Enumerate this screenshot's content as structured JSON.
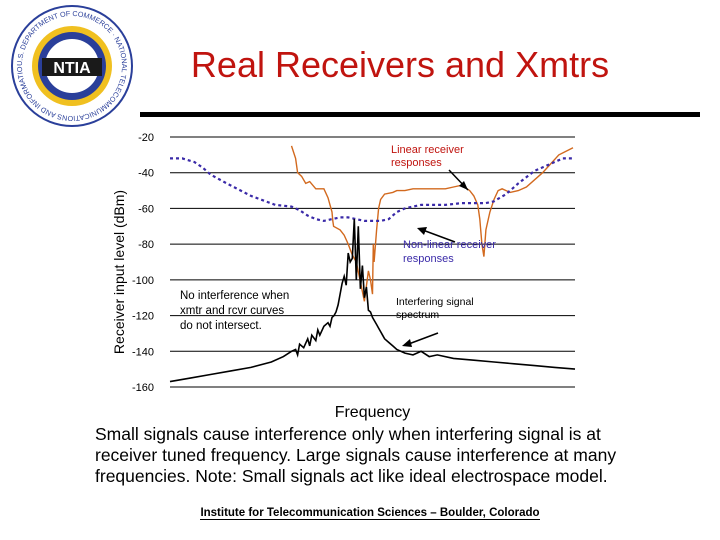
{
  "logo": {
    "text": "NTIA",
    "ring_text": "U.S. DEPARTMENT OF COMMERCE · NATIONAL TELECOMMUNICATIONS AND INFORMATION ADMINISTRATION ·",
    "colors": {
      "ring_blue": "#2a3f9a",
      "ring_gold": "#f0c020"
    }
  },
  "slide": {
    "title": "Real Receivers and Xmtrs",
    "caption": "Small signals cause interference only when interfering signal is at receiver tuned frequency.  Large signals cause interference at many frequencies.  Note: Small signals act like ideal electrospace model.",
    "footer": "Institute for Telecommunication Sciences – Boulder, Colorado"
  },
  "chart_data": {
    "type": "line",
    "xlabel": "Frequency",
    "ylabel": "Receiver input level (dBm)",
    "xlim": [
      0,
      1
    ],
    "ylim": [
      -160,
      -20
    ],
    "y_ticks": [
      -20,
      -40,
      -60,
      -80,
      -100,
      -120,
      -140,
      -160
    ],
    "y_tick_labels": [
      "-20",
      "-40",
      "-60",
      "-80",
      "-100",
      "-120",
      "-140",
      "-160"
    ],
    "grid": "horizontal",
    "colors": {
      "linear": "#d2691e",
      "nonlinear": "#3a2aa8",
      "spectrum": "#000000",
      "annotation_red": "#c0140f"
    },
    "series": [
      {
        "key": "linear",
        "x": [
          0.3,
          0.31,
          0.315,
          0.325,
          0.335,
          0.345,
          0.36,
          0.38,
          0.39,
          0.395,
          0.4,
          0.402,
          0.404,
          0.42,
          0.43,
          0.44,
          0.45,
          0.46,
          0.48,
          0.49,
          0.495,
          0.5,
          0.502,
          0.504,
          0.51,
          0.515,
          0.52,
          0.53,
          0.55,
          0.56,
          0.58,
          0.6,
          0.62,
          0.65,
          0.68,
          0.7,
          0.72,
          0.74,
          0.75,
          0.76,
          0.765,
          0.77,
          0.775,
          0.78,
          0.79,
          0.8,
          0.81,
          0.82,
          0.83,
          0.84,
          0.86,
          0.88,
          0.92,
          0.96,
          0.995
        ],
        "y": [
          -25,
          -32,
          -40,
          -42,
          -46,
          -45,
          -49,
          -49,
          -54,
          -58,
          -62,
          -67,
          -70,
          -72,
          -75,
          -80,
          -86,
          -90,
          -112,
          -95,
          -100,
          -108,
          -80,
          -90,
          -72,
          -60,
          -55,
          -52,
          -51,
          -50,
          -50,
          -49,
          -49,
          -49,
          -49,
          -48,
          -47,
          -50,
          -53,
          -58,
          -66,
          -80,
          -87,
          -72,
          -62,
          -55,
          -50,
          -49,
          -50,
          -51,
          -50,
          -48,
          -40,
          -30,
          -26
        ]
      },
      {
        "key": "nonlinear",
        "x": [
          0.0,
          0.03,
          0.06,
          0.08,
          0.1,
          0.14,
          0.2,
          0.26,
          0.3,
          0.32,
          0.34,
          0.36,
          0.38,
          0.4,
          0.42,
          0.44,
          0.46,
          0.48,
          0.5,
          0.52,
          0.54,
          0.56,
          0.58,
          0.6,
          0.62,
          0.64,
          0.68,
          0.72,
          0.76,
          0.78,
          0.8,
          0.83,
          0.86,
          0.9,
          0.94,
          0.97,
          0.995
        ],
        "y": [
          -32,
          -32,
          -34,
          -37,
          -41,
          -46,
          -53,
          -58,
          -59,
          -61,
          -64,
          -66,
          -67,
          -66,
          -65,
          -65,
          -66,
          -67,
          -67,
          -67,
          -66,
          -62,
          -60,
          -59,
          -58,
          -58,
          -58,
          -57,
          -57,
          -57,
          -56,
          -52,
          -46,
          -39,
          -35,
          -32,
          -32
        ]
      },
      {
        "key": "spectrum",
        "x": [
          0.0,
          0.05,
          0.1,
          0.15,
          0.2,
          0.25,
          0.28,
          0.3,
          0.31,
          0.315,
          0.32,
          0.33,
          0.34,
          0.345,
          0.35,
          0.36,
          0.365,
          0.37,
          0.38,
          0.39,
          0.395,
          0.4,
          0.405,
          0.41,
          0.415,
          0.42,
          0.425,
          0.43,
          0.435,
          0.44,
          0.445,
          0.45,
          0.455,
          0.46,
          0.465,
          0.47,
          0.475,
          0.48,
          0.485,
          0.49,
          0.495,
          0.5,
          0.505,
          0.51,
          0.515,
          0.52,
          0.525,
          0.53,
          0.54,
          0.55,
          0.56,
          0.58,
          0.6,
          0.62,
          0.64,
          0.66,
          0.7,
          0.75,
          0.8,
          0.85,
          0.9,
          0.95,
          1.0
        ],
        "y": [
          -157,
          -155,
          -153,
          -151,
          -149,
          -146,
          -143,
          -140,
          -139,
          -142,
          -136,
          -138,
          -133,
          -137,
          -131,
          -134,
          -128,
          -131,
          -126,
          -124,
          -126,
          -121,
          -120,
          -118,
          -114,
          -108,
          -102,
          -98,
          -103,
          -85,
          -90,
          -88,
          -66,
          -100,
          -70,
          -105,
          -92,
          -110,
          -104,
          -117,
          -118,
          -121,
          -123,
          -125,
          -127,
          -129,
          -131,
          -133,
          -135,
          -137,
          -139,
          -141,
          -142,
          -140,
          -143,
          -142,
          -144,
          -145,
          -146,
          -147,
          -148,
          -149,
          -150
        ]
      }
    ],
    "annotations": [
      {
        "text_lines": [
          "Linear receiver",
          "responses"
        ],
        "color": "red"
      },
      {
        "text_lines": [
          "Non-linear receiver",
          "responses"
        ],
        "color": "blue"
      },
      {
        "text_lines": [
          "No interference when",
          "xmtr and rcvr curves",
          "do not intersect."
        ],
        "color": "black"
      },
      {
        "text_lines": [
          "Interfering signal",
          "spectrum"
        ],
        "color": "black"
      }
    ]
  }
}
